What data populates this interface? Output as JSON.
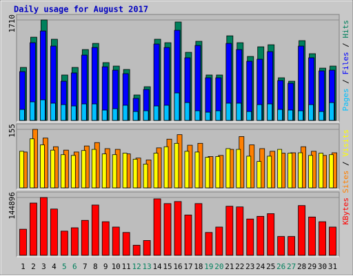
{
  "title": "Daily usage for August 2017",
  "legend_separator": "/",
  "chart_data": [
    {
      "type": "bar",
      "ylim": [
        0,
        1710
      ],
      "yticks": [
        1710
      ],
      "series": [
        {
          "name": "Pages",
          "color": "#00c0ff",
          "values": [
            187,
            316,
            351,
            293,
            269,
            246,
            281,
            281,
            176,
            199,
            258,
            152,
            164,
            246,
            258,
            468,
            304,
            164,
            140,
            164,
            293,
            293,
            152,
            269,
            281,
            187,
            176,
            164,
            269,
            152,
            304
          ]
        },
        {
          "name": "Files",
          "color": "#0000ff",
          "values": [
            831,
            1323,
            1522,
            1265,
            667,
            808,
            1112,
            1241,
            913,
            855,
            796,
            375,
            527,
            1300,
            1241,
            1534,
            1066,
            1276,
            726,
            726,
            1311,
            1206,
            1007,
            1042,
            1171,
            679,
            632,
            1265,
            1066,
            843,
            855
          ]
        },
        {
          "name": "Hits",
          "color": "#00805c",
          "values": [
            902,
            1417,
            1710,
            1382,
            773,
            902,
            1206,
            1311,
            984,
            925,
            867,
            433,
            574,
            1382,
            1323,
            1675,
            1159,
            1347,
            773,
            773,
            1440,
            1323,
            1089,
            1253,
            1288,
            726,
            667,
            1358,
            1136,
            890,
            925
          ]
        }
      ]
    },
    {
      "type": "bar",
      "ylim": [
        0,
        155
      ],
      "yticks": [
        155
      ],
      "series": [
        {
          "name": "Sites",
          "color": "#ff8000",
          "values": [
            95,
            155,
            132,
            109,
            100,
            95,
            111,
            120,
            104,
            102,
            90,
            79,
            74,
            106,
            129,
            141,
            113,
            118,
            83,
            86,
            102,
            136,
            114,
            104,
            97,
            92,
            93,
            109,
            97,
            86,
            93
          ]
        },
        {
          "name": "Visits",
          "color": "#ffff00",
          "values": [
            97,
            130,
            114,
            100,
            88,
            86,
            99,
            102,
            90,
            88,
            92,
            76,
            63,
            92,
            109,
            118,
            97,
            95,
            81,
            83,
            104,
            102,
            84,
            70,
            84,
            102,
            92,
            93,
            86,
            92,
            88
          ]
        }
      ]
    },
    {
      "type": "bar",
      "ylim": [
        0,
        144896
      ],
      "yticks": [
        144896
      ],
      "categories": [
        "1",
        "2",
        "3",
        "4",
        "5",
        "6",
        "7",
        "8",
        "9",
        "10",
        "11",
        "12",
        "13",
        "14",
        "15",
        "16",
        "17",
        "18",
        "19",
        "20",
        "21",
        "22",
        "23",
        "24",
        "25",
        "26",
        "27",
        "28",
        "29",
        "30",
        "31"
      ],
      "category_colors": [
        "#000000",
        "#000000",
        "#000000",
        "#000000",
        "#00805c",
        "#00805c",
        "#000000",
        "#000000",
        "#000000",
        "#000000",
        "#000000",
        "#00805c",
        "#00805c",
        "#000000",
        "#000000",
        "#000000",
        "#000000",
        "#000000",
        "#00805c",
        "#00805c",
        "#000000",
        "#000000",
        "#000000",
        "#000000",
        "#000000",
        "#00805c",
        "#00805c",
        "#000000",
        "#000000",
        "#000000",
        "#000000"
      ],
      "series": [
        {
          "name": "KBytes",
          "color": "#ff0000",
          "values": [
            65400,
            131000,
            144896,
            116000,
            60600,
            69000,
            87600,
            126000,
            84200,
            70800,
            57300,
            25300,
            37100,
            141500,
            129700,
            134800,
            101100,
            129700,
            57300,
            70800,
            123000,
            121300,
            91000,
            97700,
            104400,
            47200,
            47200,
            124700,
            96000,
            84200,
            70800
          ]
        }
      ]
    }
  ]
}
